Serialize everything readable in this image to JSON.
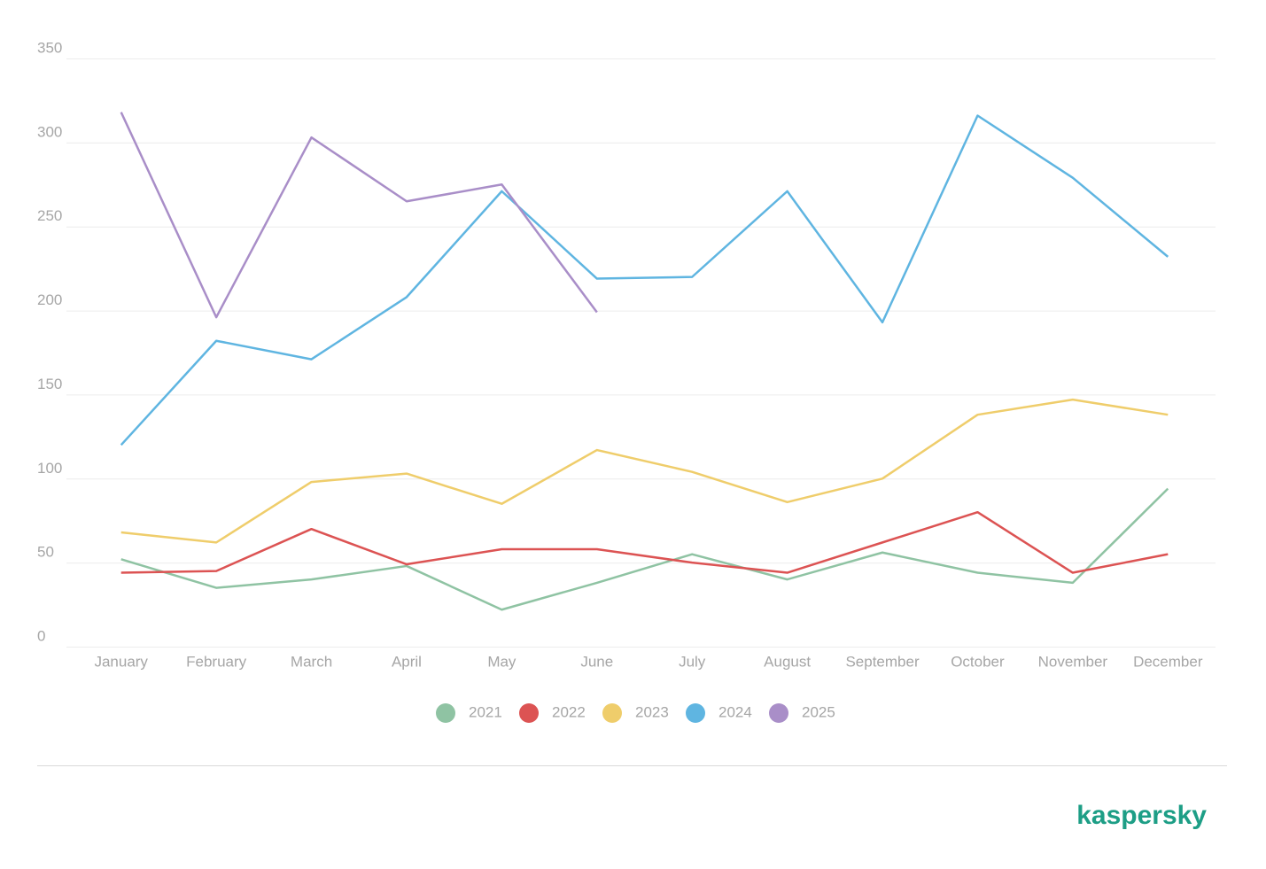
{
  "chart_data": {
    "type": "line",
    "categories": [
      "January",
      "February",
      "March",
      "April",
      "May",
      "June",
      "July",
      "August",
      "September",
      "October",
      "November",
      "December"
    ],
    "series": [
      {
        "name": "2021",
        "color": "#8fc3a3",
        "values": [
          52,
          35,
          40,
          48,
          22,
          38,
          55,
          40,
          56,
          44,
          38,
          94
        ]
      },
      {
        "name": "2022",
        "color": "#dc5353",
        "values": [
          44,
          45,
          70,
          49,
          58,
          58,
          50,
          44,
          62,
          80,
          44,
          55
        ]
      },
      {
        "name": "2023",
        "color": "#efcd6b",
        "values": [
          68,
          62,
          98,
          103,
          85,
          117,
          104,
          86,
          100,
          138,
          147,
          138
        ]
      },
      {
        "name": "2024",
        "color": "#5fb5e1",
        "values": [
          120,
          182,
          171,
          208,
          271,
          219,
          220,
          271,
          193,
          316,
          279,
          232
        ]
      },
      {
        "name": "2025",
        "color": "#a98ec8",
        "values": [
          318,
          196,
          303,
          265,
          275,
          199,
          null,
          null,
          null,
          null,
          null,
          null
        ]
      }
    ],
    "ylim": [
      0,
      350
    ],
    "yticks": [
      0,
      50,
      100,
      150,
      200,
      250,
      300,
      350
    ],
    "grid": true,
    "legend": "bottom"
  },
  "brand": "kaspersky"
}
